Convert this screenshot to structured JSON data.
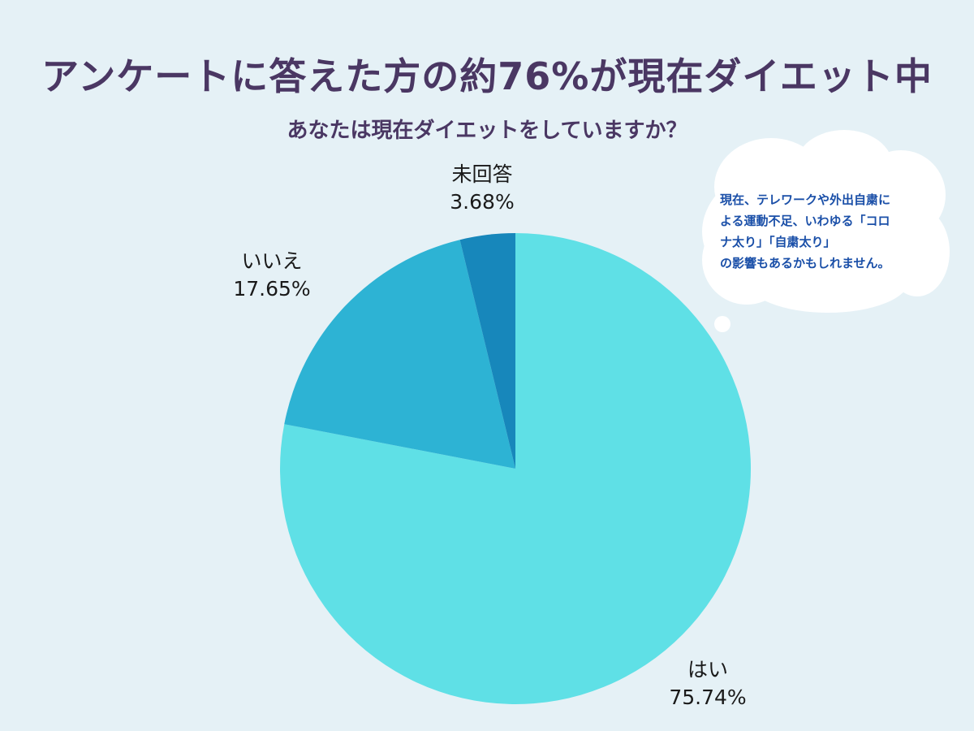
{
  "title": "アンケートに答えた方の約76%が現在ダイエット中",
  "callout": {
    "lines": [
      "現在、テレワークや外出自粛に",
      "よる運動不足、いわゆる「コロ",
      "ナ太り」「自粛太り」",
      "の影響もあるかもしれません。"
    ]
  },
  "chart_data": {
    "type": "pie",
    "title": "あなたは現在ダイエットをしていますか？",
    "start_angle": "12 o'clock, clockwise",
    "slices": [
      {
        "label": "はい",
        "value": 75.74,
        "value_label": "75.74%",
        "color": "#5fe0e6"
      },
      {
        "label": "いいえ",
        "value": 17.65,
        "value_label": "17.65%",
        "color": "#2db3d4"
      },
      {
        "label": "未回答",
        "value": 3.68,
        "value_label": "3.68%",
        "color": "#1787bb"
      }
    ]
  }
}
